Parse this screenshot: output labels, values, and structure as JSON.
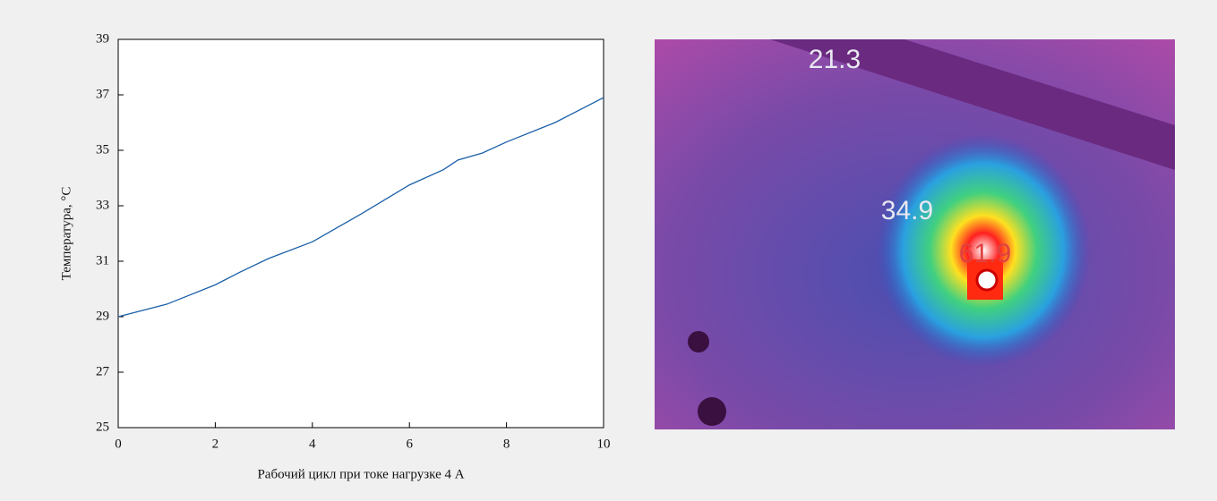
{
  "chart_data": {
    "type": "line",
    "x_label": "Рабочий цикл при токе нагрузке 4 А",
    "y_label": "Температура, °C",
    "xlim": [
      0,
      10
    ],
    "xticks": [
      0,
      2,
      4,
      6,
      8,
      10
    ],
    "ylim": [
      25,
      39
    ],
    "yticks": [
      25,
      27,
      29,
      31,
      33,
      35,
      37,
      39
    ],
    "series": [
      {
        "color": "#1a5fa8",
        "x": [
          0,
          1,
          2,
          2.5,
          3.1,
          4,
          5,
          6,
          6.7,
          7,
          7.5,
          8,
          9,
          10
        ],
        "values": [
          29.0,
          29.45,
          30.15,
          30.6,
          31.1,
          31.7,
          32.7,
          33.75,
          34.3,
          34.65,
          34.9,
          35.3,
          36.0,
          36.9
        ]
      }
    ]
  },
  "thermal_image": {
    "labels": [
      "21.3",
      "34.9",
      "61.9"
    ]
  }
}
